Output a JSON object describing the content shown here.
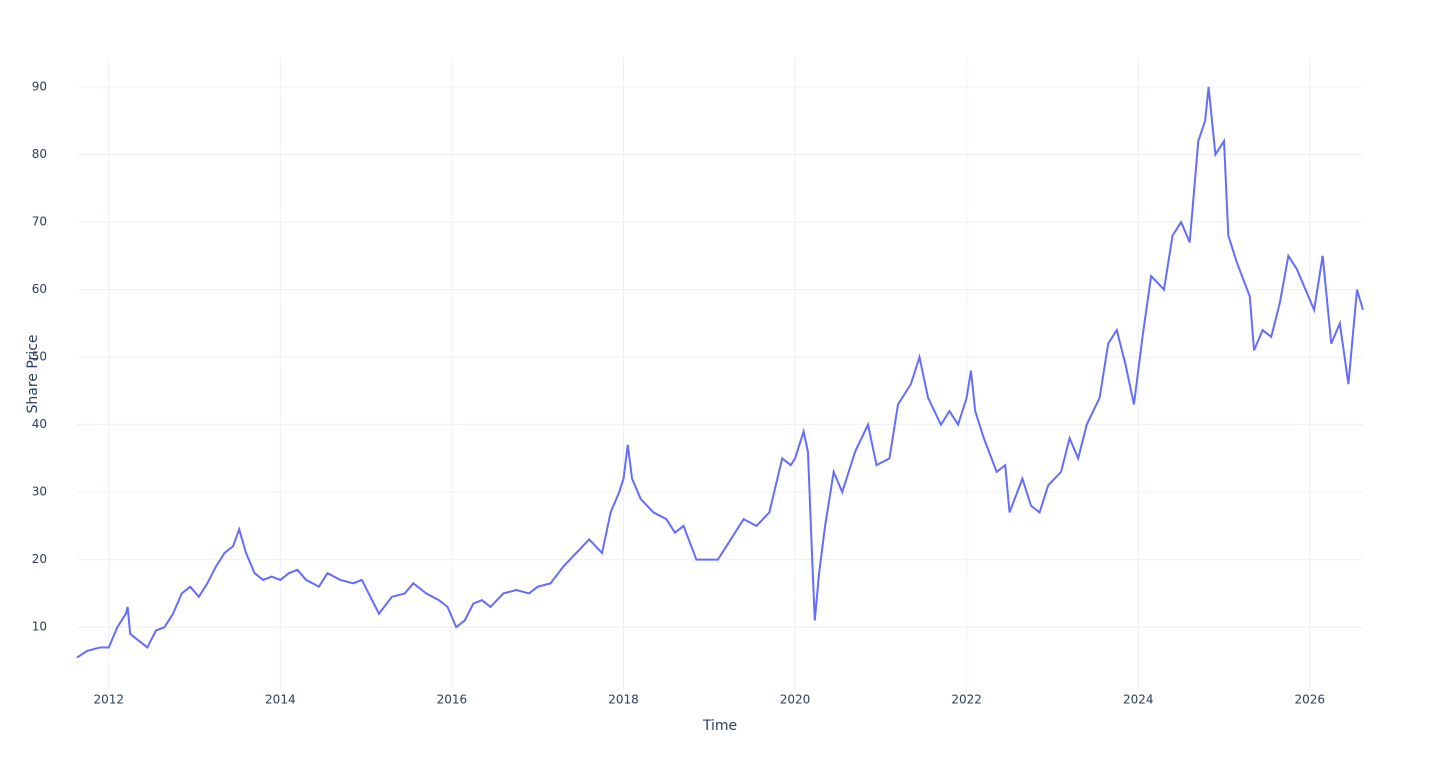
{
  "chart_data": {
    "type": "line",
    "x_label": "Time",
    "y_label": "Share Price",
    "x": [
      2011.63,
      2011.75,
      2011.9,
      2012.0,
      2012.1,
      2012.2,
      2012.22,
      2012.25,
      2012.35,
      2012.45,
      2012.55,
      2012.65,
      2012.75,
      2012.85,
      2012.95,
      2013.05,
      2013.15,
      2013.25,
      2013.35,
      2013.45,
      2013.52,
      2013.6,
      2013.7,
      2013.8,
      2013.9,
      2014.0,
      2014.1,
      2014.2,
      2014.3,
      2014.45,
      2014.55,
      2014.7,
      2014.85,
      2014.95,
      2015.05,
      2015.15,
      2015.3,
      2015.45,
      2015.55,
      2015.7,
      2015.85,
      2015.95,
      2016.05,
      2016.15,
      2016.25,
      2016.35,
      2016.45,
      2016.6,
      2016.75,
      2016.9,
      2017.0,
      2017.15,
      2017.3,
      2017.45,
      2017.6,
      2017.75,
      2017.85,
      2017.95,
      2018.0,
      2018.05,
      2018.1,
      2018.2,
      2018.35,
      2018.5,
      2018.6,
      2018.7,
      2018.85,
      2018.95,
      2019.1,
      2019.25,
      2019.4,
      2019.55,
      2019.7,
      2019.85,
      2019.95,
      2020.0,
      2020.1,
      2020.15,
      2020.2,
      2020.23,
      2020.28,
      2020.35,
      2020.45,
      2020.55,
      2020.7,
      2020.85,
      2020.95,
      2021.1,
      2021.2,
      2021.35,
      2021.45,
      2021.55,
      2021.7,
      2021.8,
      2021.9,
      2022.0,
      2022.05,
      2022.1,
      2022.2,
      2022.35,
      2022.45,
      2022.5,
      2022.65,
      2022.75,
      2022.85,
      2022.95,
      2023.1,
      2023.2,
      2023.3,
      2023.4,
      2023.55,
      2023.65,
      2023.75,
      2023.85,
      2023.95,
      2024.05,
      2024.15,
      2024.3,
      2024.4,
      2024.5,
      2024.6,
      2024.7,
      2024.78,
      2024.82,
      2024.9,
      2025.0,
      2025.05,
      2025.15,
      2025.3,
      2025.35,
      2025.45,
      2025.55,
      2025.65,
      2025.75,
      2025.85,
      2025.95,
      2026.05,
      2026.15,
      2026.25,
      2026.35,
      2026.45,
      2026.55,
      2026.62
    ],
    "series": [
      {
        "color": "#636efa",
        "values": [
          5.5,
          6.5,
          7,
          7,
          10,
          12,
          13,
          9,
          8,
          7,
          9.5,
          10,
          12,
          15,
          16,
          14.5,
          16.5,
          19,
          21,
          22,
          24.5,
          21,
          18,
          17,
          17.5,
          17,
          18,
          18.5,
          17,
          16,
          18,
          17,
          16.5,
          17,
          14.5,
          12,
          14.5,
          15,
          16.5,
          15,
          14,
          13,
          10,
          11,
          13.5,
          14,
          13,
          15,
          15.5,
          15,
          16,
          16.5,
          19,
          21,
          23,
          21,
          27,
          30,
          32,
          37,
          32,
          29,
          27,
          26,
          24,
          25,
          20,
          20,
          20,
          23,
          26,
          25,
          27,
          35,
          34,
          35,
          39,
          36,
          20,
          11,
          18,
          25,
          33,
          30,
          36,
          40,
          34,
          35,
          43,
          46,
          50,
          44,
          40,
          42,
          40,
          44,
          48,
          42,
          38,
          33,
          34,
          27,
          32,
          28,
          27,
          31,
          33,
          38,
          35,
          40,
          44,
          52,
          54,
          49,
          43,
          53,
          62,
          60,
          68,
          70,
          67,
          82,
          85,
          90,
          80,
          82,
          68,
          64,
          59,
          51,
          54,
          53,
          58,
          65,
          63,
          60,
          57,
          65,
          52,
          55,
          46,
          60,
          57
        ]
      }
    ],
    "xlim": [
      2011.63,
      2026.62
    ],
    "xticks": [
      2012,
      2014,
      2016,
      2018,
      2020,
      2022,
      2024,
      2026
    ],
    "ylim": [
      0.7,
      94.3
    ],
    "yticks": [
      10,
      20,
      30,
      40,
      50,
      60,
      70,
      80,
      90
    ],
    "grid": true
  }
}
